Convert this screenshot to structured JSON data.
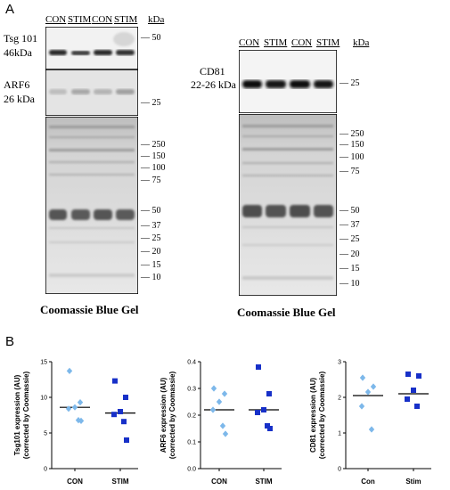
{
  "panel_a": {
    "letter": "A",
    "left": {
      "lanes": [
        "CON",
        "STIM",
        "CON",
        "STIM"
      ],
      "kda_header": "kDa",
      "blots": [
        {
          "label_line1": "Tsg 101",
          "label_line2": "46kDa",
          "marker": "50"
        },
        {
          "label_line1": "ARF6",
          "label_line2": "26 kDa",
          "marker": "25"
        }
      ],
      "gel_markers": [
        "250",
        "150",
        "100",
        "75",
        "50",
        "37",
        "25",
        "20",
        "15",
        "10"
      ],
      "gel_caption": "Coomassie Blue Gel"
    },
    "right": {
      "lanes": [
        "CON",
        "STIM",
        "CON",
        "STIM"
      ],
      "kda_header": "kDa",
      "blot": {
        "label_line1": "CD81",
        "label_line2": "22-26 kDa",
        "marker": "25"
      },
      "gel_markers": [
        "250",
        "150",
        "100",
        "75",
        "50",
        "37",
        "25",
        "20",
        "15",
        "10"
      ],
      "gel_caption": "Coomassie Blue Gel"
    }
  },
  "panel_b": {
    "letter": "B",
    "colors": {
      "con": "#7db8ea",
      "stim": "#1730c8"
    }
  },
  "chart_data": [
    {
      "type": "scatter",
      "ylabel_line1": "Tsg101 expression (AU)",
      "ylabel_line2": "(corrected by Coomassie)",
      "categories": [
        "CON",
        "STIM"
      ],
      "ylim": [
        0,
        15
      ],
      "yticks": [
        "0",
        "5",
        "10",
        "15"
      ],
      "series": [
        {
          "category": "CON",
          "values": [
            13.7,
            9.3,
            8.6,
            8.4,
            6.8,
            6.7
          ],
          "mean": 8.6
        },
        {
          "category": "STIM",
          "values": [
            12.3,
            10.0,
            8.0,
            7.6,
            6.6,
            4.0
          ],
          "mean": 7.8
        }
      ]
    },
    {
      "type": "scatter",
      "ylabel_line1": "ARF6 expression (AU)",
      "ylabel_line2": "(corrected by Coomassie)",
      "categories": [
        "CON",
        "STIM"
      ],
      "ylim": [
        0,
        0.4
      ],
      "yticks": [
        "0.0",
        "0.1",
        "0.2",
        "0.3",
        "0.4"
      ],
      "series": [
        {
          "category": "CON",
          "values": [
            0.3,
            0.28,
            0.25,
            0.22,
            0.16,
            0.13
          ],
          "mean": 0.22
        },
        {
          "category": "STIM",
          "values": [
            0.38,
            0.28,
            0.22,
            0.21,
            0.16,
            0.15
          ],
          "mean": 0.22
        }
      ]
    },
    {
      "type": "scatter",
      "ylabel_line1": "CD81 expression (AU)",
      "ylabel_line2": "(corrected by Coomassie)",
      "categories": [
        "Con",
        "Stim"
      ],
      "ylim": [
        0,
        3
      ],
      "yticks": [
        "0",
        "1",
        "2",
        "3"
      ],
      "series": [
        {
          "category": "Con",
          "values": [
            2.55,
            2.3,
            2.15,
            1.75,
            1.1
          ],
          "mean": 2.05
        },
        {
          "category": "Stim",
          "values": [
            2.65,
            2.6,
            2.2,
            1.95,
            1.75
          ],
          "mean": 2.1
        }
      ]
    }
  ]
}
